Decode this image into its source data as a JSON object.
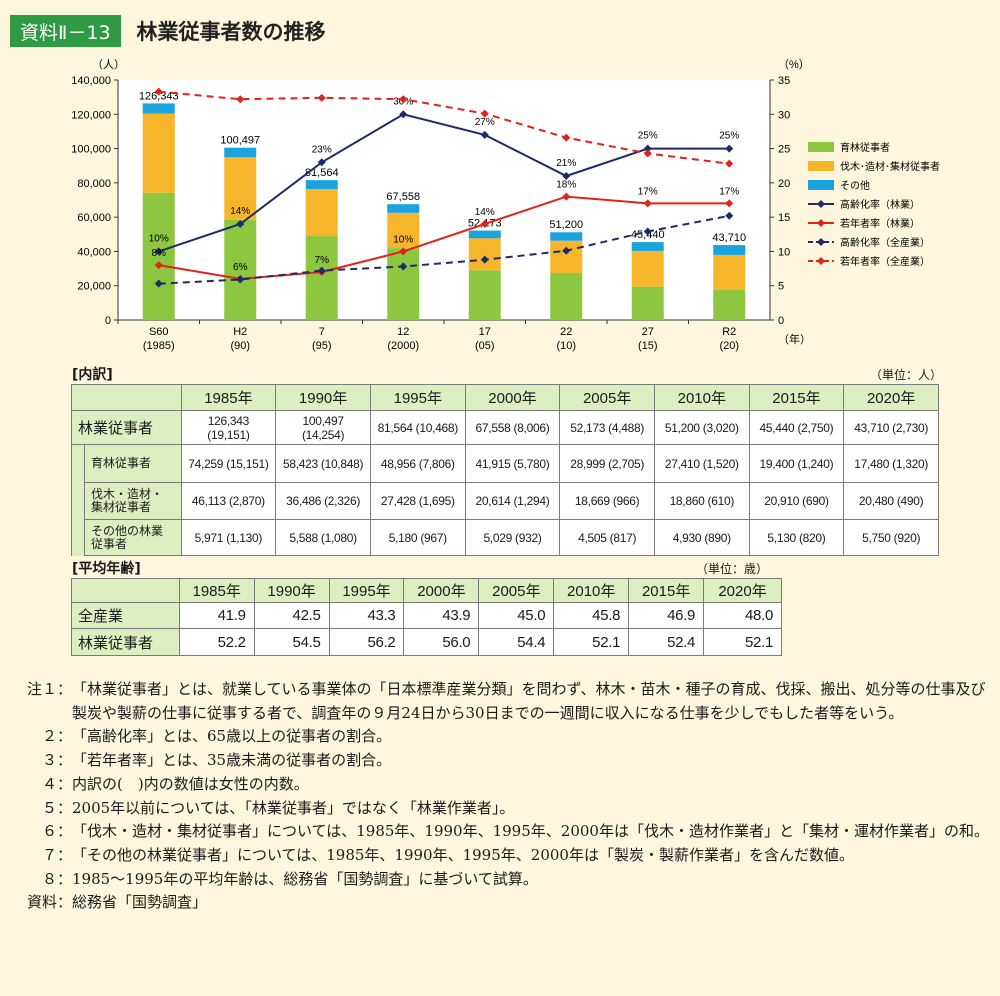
{
  "header": {
    "badge": "資料Ⅱ－13",
    "title": "林業従事者数の推移"
  },
  "chart_data": {
    "type": "bar",
    "categories": [
      {
        "top": "S60",
        "bottom": "(1985)"
      },
      {
        "top": "H2",
        "bottom": "(90)"
      },
      {
        "top": "7",
        "bottom": "(95)"
      },
      {
        "top": "12",
        "bottom": "(2000)"
      },
      {
        "top": "17",
        "bottom": "(05)"
      },
      {
        "top": "22",
        "bottom": "(10)"
      },
      {
        "top": "27",
        "bottom": "(15)"
      },
      {
        "top": "R2",
        "bottom": "(20)"
      }
    ],
    "y_left": {
      "unit": "（人）",
      "min": 0,
      "max": 140000,
      "ticks": [
        "0",
        "20,000",
        "40,000",
        "60,000",
        "80,000",
        "100,000",
        "120,000",
        "140,000"
      ]
    },
    "y_right": {
      "unit": "（%）",
      "min": 0,
      "max": 35,
      "ticks": [
        "0",
        "5",
        "10",
        "15",
        "20",
        "25",
        "30",
        "35"
      ]
    },
    "x_unit": "（年）",
    "stack_series": [
      {
        "name": "育林従事者",
        "color": "#8dc63f",
        "values": [
          74259,
          58423,
          48956,
          41915,
          28999,
          27410,
          19400,
          17480
        ]
      },
      {
        "name": "伐木･造材･集材従事者",
        "color": "#f7b52c",
        "values": [
          46113,
          36486,
          27428,
          20614,
          18669,
          18860,
          20910,
          20480
        ]
      },
      {
        "name": "その他",
        "color": "#1ba3de",
        "values": [
          5971,
          5588,
          5180,
          5029,
          4505,
          4930,
          5130,
          5750
        ]
      }
    ],
    "totals": [
      126343,
      100497,
      81564,
      67558,
      52173,
      51200,
      45440,
      43710
    ],
    "total_labels": [
      "126,343",
      "100,497",
      "81,564",
      "67,558",
      "52,173",
      "51,200",
      "45,440",
      "43,710"
    ],
    "line_series": [
      {
        "name": "高齢化率（林業）",
        "color": "#1f2a6b",
        "dashed": false,
        "values": [
          10,
          14,
          23,
          30,
          27,
          21,
          25,
          25
        ],
        "labels": [
          "10%",
          "14%",
          "23%",
          "30%",
          "27%",
          "21%",
          "25%",
          "25%"
        ]
      },
      {
        "name": "若年者率（林業）",
        "color": "#e2231a",
        "dashed": false,
        "values": [
          8,
          6,
          7,
          10,
          14,
          18,
          17,
          17
        ],
        "labels": [
          "8%",
          "6%",
          "7%",
          "10%",
          "14%",
          "18%",
          "17%",
          "17%"
        ]
      },
      {
        "name": "高齢化率（全産業）",
        "color": "#1f2a6b",
        "dashed": true,
        "values": [
          5.3,
          5.9,
          7.2,
          7.8,
          8.8,
          10.1,
          12.9,
          15.2
        ],
        "labels": []
      },
      {
        "name": "若年者率（全産業）",
        "color": "#e2231a",
        "dashed": true,
        "values": [
          33.3,
          32.2,
          32.4,
          32.2,
          30.1,
          26.6,
          24.3,
          22.8
        ],
        "labels": []
      }
    ],
    "legend_position": "right"
  },
  "breakdown": {
    "label": "[内訳]",
    "unit": "（単位：人）",
    "years": [
      "1985年",
      "1990年",
      "1995年",
      "2000年",
      "2005年",
      "2010年",
      "2015年",
      "2020年"
    ],
    "main_row": {
      "name": "林業従事者",
      "values": [
        "126,343 (19,151)",
        "100,497 (14,254)",
        "81,564 (10,468)",
        "67,558 (8,006)",
        "52,173 (4,488)",
        "51,200 (3,020)",
        "45,440 (2,750)",
        "43,710 (2,730)"
      ]
    },
    "sub_rows": [
      {
        "name": "育林従事者",
        "values": [
          "74,259 (15,151)",
          "58,423 (10,848)",
          "48,956 (7,806)",
          "41,915 (5,780)",
          "28,999 (2,705)",
          "27,410 (1,520)",
          "19,400 (1,240)",
          "17,480 (1,320)"
        ]
      },
      {
        "name": "伐木・造材・\n集材従事者",
        "values": [
          "46,113 (2,870)",
          "36,486 (2,326)",
          "27,428 (1,695)",
          "20,614 (1,294)",
          "18,669 (966)",
          "18,860 (610)",
          "20,910 (690)",
          "20,480 (490)"
        ]
      },
      {
        "name": "その他の林業\n従事者",
        "values": [
          "5,971 (1,130)",
          "5,588 (1,080)",
          "5,180 (967)",
          "5,029 (932)",
          "4,505 (817)",
          "4,930 (890)",
          "5,130 (820)",
          "5,750 (920)"
        ]
      }
    ]
  },
  "average_age": {
    "label": "[平均年齢]",
    "unit": "（単位：歳）",
    "years": [
      "1985年",
      "1990年",
      "1995年",
      "2000年",
      "2005年",
      "2010年",
      "2015年",
      "2020年"
    ],
    "rows": [
      {
        "name": "全産業",
        "values": [
          "41.9",
          "42.5",
          "43.3",
          "43.9",
          "45.0",
          "45.8",
          "46.9",
          "48.0"
        ]
      },
      {
        "name": "林業従事者",
        "values": [
          "52.2",
          "54.5",
          "56.2",
          "56.0",
          "54.4",
          "52.1",
          "52.4",
          "52.1"
        ]
      }
    ]
  },
  "notes": [
    {
      "key": "注１：",
      "text": "「林業従事者」とは、就業している事業体の「日本標準産業分類」を問わず、林木・苗木・種子の育成、伐採、搬出、処分等の仕事及び製炭や製薪の仕事に従事する者で、調査年の９月24日から30日までの一週間に収入になる仕事を少しでもした者等をいう。"
    },
    {
      "key": "２：",
      "text": "「高齢化率」とは、65歳以上の従事者の割合。"
    },
    {
      "key": "３：",
      "text": "「若年者率」とは、35歳未満の従事者の割合。"
    },
    {
      "key": "４：",
      "text": "内訳の(　)内の数値は女性の内数。"
    },
    {
      "key": "５：",
      "text": "2005年以前については、「林業従事者」ではなく「林業作業者」。"
    },
    {
      "key": "６：",
      "text": "「伐木・造材・集材従事者」については、1985年、1990年、1995年、2000年は「伐木・造材作業者」と「集材・運材作業者」の和。"
    },
    {
      "key": "７：",
      "text": "「その他の林業従事者」については、1985年、1990年、1995年、2000年は「製炭・製薪作業者」を含んだ数値。"
    },
    {
      "key": "８：",
      "text": "1985～1995年の平均年齢は、総務省「国勢調査」に基づいて試算。"
    },
    {
      "key": "資料：",
      "text": "総務省「国勢調査」"
    }
  ]
}
